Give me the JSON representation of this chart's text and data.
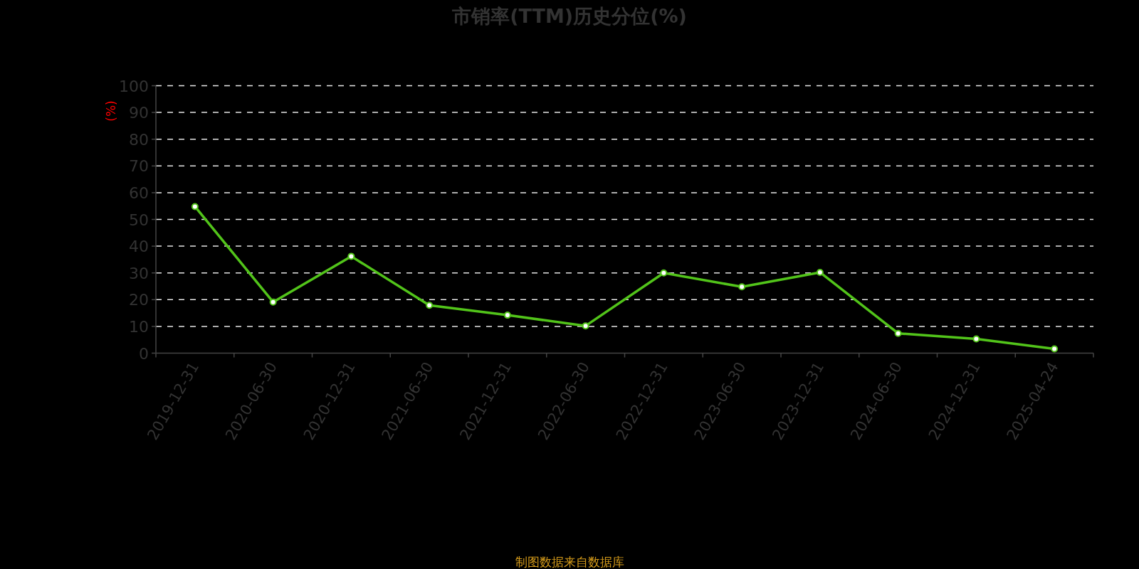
{
  "chart_data": {
    "type": "line",
    "title": "市销率(TTM)历史分位(%)",
    "ylabel": "(%)",
    "categories": [
      "2019-12-31",
      "2020-06-30",
      "2020-12-31",
      "2021-06-30",
      "2021-12-31",
      "2022-06-30",
      "2022-12-31",
      "2023-06-30",
      "2023-12-31",
      "2024-06-30",
      "2024-12-31",
      "2025-04-24"
    ],
    "series": [
      {
        "color": "#52c41a",
        "values": [
          54.8,
          19.1,
          36.2,
          17.9,
          14.2,
          10.2,
          30.0,
          24.8,
          30.2,
          7.4,
          5.3,
          1.6
        ]
      }
    ],
    "ylim": [
      0,
      100
    ],
    "yticks": [
      0,
      10,
      20,
      30,
      40,
      50,
      60,
      70,
      80,
      90,
      100
    ],
    "grid": "y",
    "marker": "circle",
    "line_style": "solid",
    "annotations": [
      "制图数据来自数据库"
    ]
  }
}
